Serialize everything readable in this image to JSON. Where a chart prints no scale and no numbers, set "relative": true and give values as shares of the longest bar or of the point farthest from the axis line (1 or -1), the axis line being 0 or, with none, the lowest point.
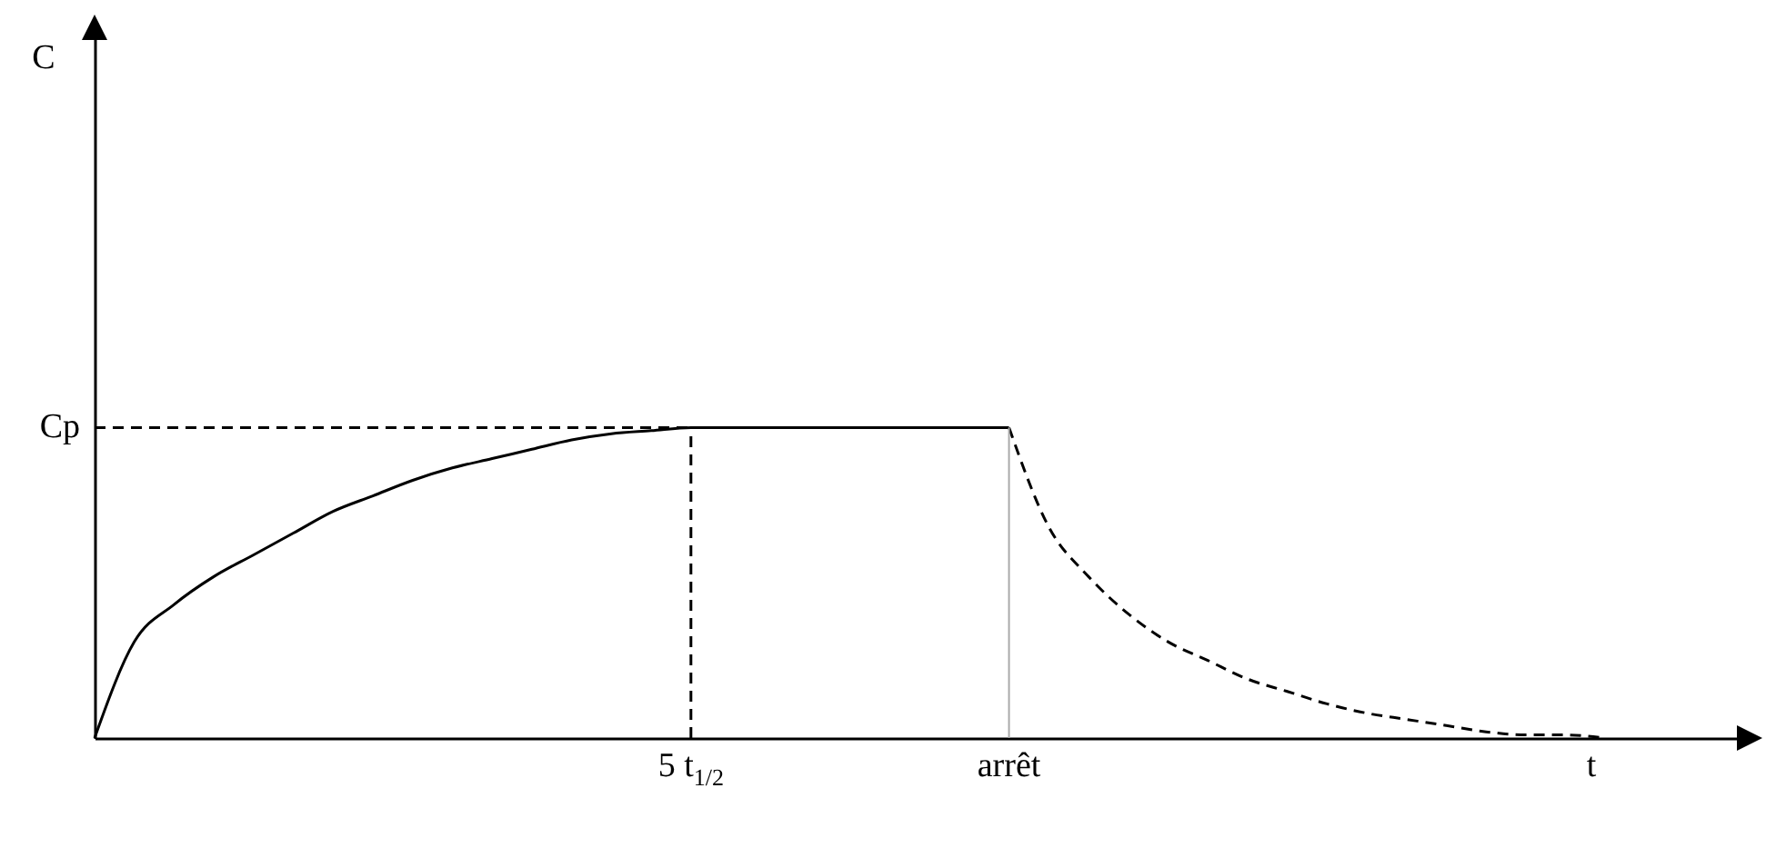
{
  "chart_data": {
    "type": "line",
    "relative": true,
    "xlabel": "t",
    "annotations": [
      "C"
    ],
    "categories": [
      null,
      null,
      null,
      null,
      null,
      null,
      null,
      null,
      null,
      null,
      null,
      null,
      null,
      null,
      null,
      "5 t$_{1/2}$",
      null,
      null,
      null,
      null,
      null,
      null,
      null,
      "arrêt",
      null,
      null,
      null,
      null,
      null,
      null,
      null,
      null,
      null,
      null,
      null,
      null,
      null,
      null,
      null,
      null,
      null
    ],
    "ref_lines": [
      {
        "axis": "x",
        "value": "5 t$_{1/2}$",
        "color": "#000000",
        "line_style": "dashed"
      },
      {
        "axis": "x",
        "value": "arrêt",
        "color": "#aaaaaa",
        "line_style": "solid"
      },
      {
        "axis": "y",
        "value": 1,
        "label": "Cp",
        "color": "#000000",
        "line_style": "dashed"
      }
    ],
    "series": [
      {
        "color": "#000000",
        "line_style": "solid",
        "values": [
          0,
          0.31,
          0.43,
          0.52,
          0.59,
          0.66,
          0.73,
          0.78,
          0.83,
          0.87,
          0.9,
          0.93,
          0.96,
          0.98,
          0.99,
          1,
          1,
          1,
          1,
          1,
          1,
          1,
          1,
          1,
          null,
          null,
          null,
          null,
          null,
          null,
          null,
          null,
          null,
          null,
          null,
          null,
          null,
          null,
          null,
          null,
          null
        ]
      },
      {
        "color": "#000000",
        "line_style": "dashed",
        "values": [
          null,
          null,
          null,
          null,
          null,
          null,
          null,
          null,
          null,
          null,
          null,
          null,
          null,
          null,
          null,
          null,
          null,
          null,
          null,
          null,
          null,
          null,
          null,
          1,
          0.68,
          0.52,
          0.4,
          0.31,
          0.25,
          0.19,
          0.15,
          0.11,
          0.08,
          0.06,
          0.04,
          0.02,
          0.01,
          0.01,
          0,
          null,
          null
        ]
      }
    ]
  }
}
